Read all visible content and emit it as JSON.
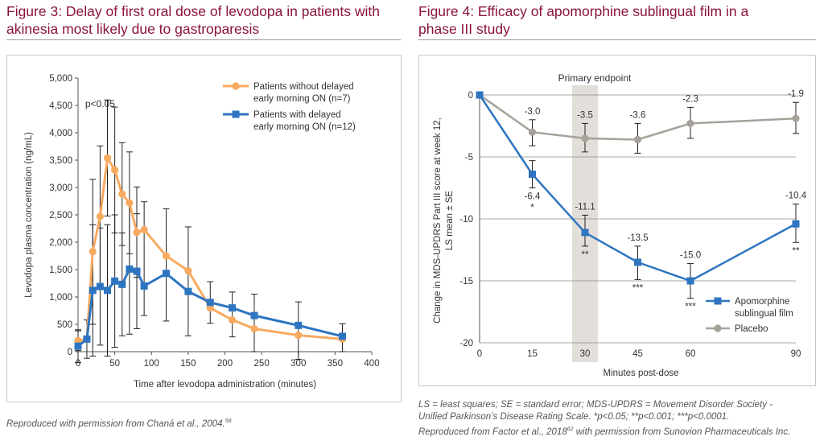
{
  "figure3": {
    "title_line1": "Figure 3: Delay of first oral dose of levodopa in patients with",
    "title_line2": "akinesia most likely due to gastroparesis",
    "caption": "Reproduced with permission from Chaná et al., 2004.",
    "caption_ref": "58"
  },
  "figure4": {
    "title_line1": "Figure 4: Efficacy of apomorphine sublingual film in a",
    "title_line2": "phase III study",
    "caption_line1": "LS = least squares; SE = standard error; MDS-UPDRS = Movement Disorder Society -",
    "caption_line2": "Unified Parkinson’s Disease Rating Scale. *p<0.05; **p<0.001; ***p<0.0001.",
    "caption_line3a": "Reproduced from Factor et al., 2018",
    "caption_ref": "62",
    "caption_line3b": " with permission from Sunovion Pharmaceuticals Inc."
  },
  "colors": {
    "title": "#8a1538",
    "orange": "#f7aa60",
    "blue": "#2e75c1",
    "gray": "#a6a29a",
    "band": "#e2ded9"
  },
  "chart_data": [
    {
      "type": "line",
      "xlabel": "Time after levodopa administration (minutes)",
      "ylabel": "Levodopa plasma concentration (ng/mL)",
      "xlim": [
        0,
        400
      ],
      "ylim": [
        0,
        5000
      ],
      "xticks": [
        0,
        50,
        100,
        150,
        200,
        250,
        300,
        350,
        400
      ],
      "yticks": [
        0,
        500,
        1000,
        1500,
        2000,
        2500,
        3000,
        3500,
        4000,
        4500,
        5000
      ],
      "ytick_labels": [
        "0",
        "500",
        "1,000",
        "1,500",
        "2,000",
        "2,500",
        "3,000",
        "3,500",
        "4,000",
        "4,500",
        "5,000"
      ],
      "annotation": "p<0.05",
      "legend_position": "top-right",
      "series": [
        {
          "name_line1": "Patients without delayed",
          "name_line2": "early morning ON (n=7)",
          "marker": "circle",
          "color": "#f7aa60",
          "points": [
            {
              "x": 0,
              "y": 200,
              "lo": 20,
              "hi": 380
            },
            {
              "x": 12,
              "y": 230
            },
            {
              "x": 20,
              "y": 1830,
              "lo": 500,
              "hi": 3150
            },
            {
              "x": 30,
              "y": 2470,
              "lo": 1180,
              "hi": 3760
            },
            {
              "x": 40,
              "y": 3540,
              "lo": 2480,
              "hi": 4600
            },
            {
              "x": 50,
              "y": 3320,
              "lo": 2170,
              "hi": 4470
            },
            {
              "x": 60,
              "y": 2880,
              "lo": 1940,
              "hi": 3820
            },
            {
              "x": 70,
              "y": 2720,
              "lo": 1790,
              "hi": 3650
            },
            {
              "x": 80,
              "y": 2180,
              "lo": 1360,
              "hi": 3010
            },
            {
              "x": 90,
              "y": 2230
            },
            {
              "x": 120,
              "y": 1750
            },
            {
              "x": 150,
              "y": 1480
            },
            {
              "x": 180,
              "y": 800
            },
            {
              "x": 210,
              "y": 580
            },
            {
              "x": 240,
              "y": 420
            },
            {
              "x": 300,
              "y": 300
            },
            {
              "x": 360,
              "y": 230
            }
          ]
        },
        {
          "name_line1": "Patients with delayed",
          "name_line2": "early morning ON (n=12)",
          "marker": "square",
          "color": "#2e75c1",
          "points": [
            {
              "x": 0,
              "y": 100,
              "lo": -200,
              "hi": 400
            },
            {
              "x": 12,
              "y": 230,
              "lo": -120,
              "hi": 580
            },
            {
              "x": 20,
              "y": 1120,
              "lo": -80,
              "hi": 2320
            },
            {
              "x": 30,
              "y": 1190,
              "lo": 120,
              "hi": 2260
            },
            {
              "x": 40,
              "y": 1120,
              "lo": -80,
              "hi": 2320
            },
            {
              "x": 50,
              "y": 1290,
              "lo": 80,
              "hi": 2500
            },
            {
              "x": 60,
              "y": 1230,
              "lo": 290,
              "hi": 2170
            },
            {
              "x": 70,
              "y": 1510,
              "lo": 320,
              "hi": 2700
            },
            {
              "x": 80,
              "y": 1470,
              "lo": 420,
              "hi": 2520
            },
            {
              "x": 90,
              "y": 1200,
              "lo": 660,
              "hi": 2740
            },
            {
              "x": 120,
              "y": 1430,
              "lo": 560,
              "hi": 2610
            },
            {
              "x": 150,
              "y": 1100,
              "lo": 290,
              "hi": 2280
            },
            {
              "x": 180,
              "y": 900,
              "lo": 520,
              "hi": 1280
            },
            {
              "x": 210,
              "y": 800,
              "lo": 270,
              "hi": 1090
            },
            {
              "x": 240,
              "y": 660,
              "lo": 0,
              "hi": 1050
            },
            {
              "x": 300,
              "y": 480,
              "lo": -140,
              "hi": 910
            },
            {
              "x": 360,
              "y": 280,
              "lo": 0,
              "hi": 510
            }
          ]
        }
      ]
    },
    {
      "type": "line",
      "xlabel": "Minutes post-dose",
      "ylabel_line1": "Change in MDS-UPDRS Part III score at week 12,",
      "ylabel_line2": "LS mean ± SE",
      "xlim": [
        0,
        90
      ],
      "ylim": [
        -20,
        0
      ],
      "xticks": [
        0,
        15,
        30,
        45,
        60,
        90
      ],
      "yticks": [
        0,
        -5,
        -10,
        -15,
        -20
      ],
      "highlight": {
        "label": "Primary endpoint",
        "x_center": 30
      },
      "legend_position": "bottom-right",
      "series": [
        {
          "name_line1": "Apomorphine",
          "name_line2": "sublingual film",
          "marker": "square",
          "color": "#2e75c1",
          "points": [
            {
              "x": 0,
              "y": 0
            },
            {
              "x": 15,
              "y": -6.4,
              "lo": -7.5,
              "hi": -5.3,
              "label": "-6.4",
              "sig": "*"
            },
            {
              "x": 30,
              "y": -11.1,
              "lo": -12.2,
              "hi": -9.7,
              "label": "-11.1",
              "sig": "**"
            },
            {
              "x": 45,
              "y": -13.5,
              "lo": -14.9,
              "hi": -12.2,
              "label": "-13.5",
              "sig": "***"
            },
            {
              "x": 60,
              "y": -15.0,
              "lo": -16.4,
              "hi": -13.6,
              "label": "-15.0",
              "sig": "***"
            },
            {
              "x": 90,
              "y": -10.4,
              "lo": -11.9,
              "hi": -8.8,
              "label": "-10.4",
              "sig": "**"
            }
          ]
        },
        {
          "name": "Placebo",
          "marker": "circle",
          "color": "#a6a29a",
          "points": [
            {
              "x": 0,
              "y": 0
            },
            {
              "x": 15,
              "y": -3.0,
              "lo": -4.1,
              "hi": -2.0,
              "label": "-3.0"
            },
            {
              "x": 30,
              "y": -3.5,
              "lo": -4.6,
              "hi": -2.3,
              "label": "-3.5"
            },
            {
              "x": 45,
              "y": -3.6,
              "lo": -4.7,
              "hi": -2.3,
              "label": "-3.6"
            },
            {
              "x": 60,
              "y": -2.3,
              "lo": -3.5,
              "hi": -1.0,
              "label": "-2.3"
            },
            {
              "x": 90,
              "y": -1.9,
              "lo": -3.1,
              "hi": -0.6,
              "label": "-1.9"
            }
          ]
        }
      ]
    }
  ]
}
